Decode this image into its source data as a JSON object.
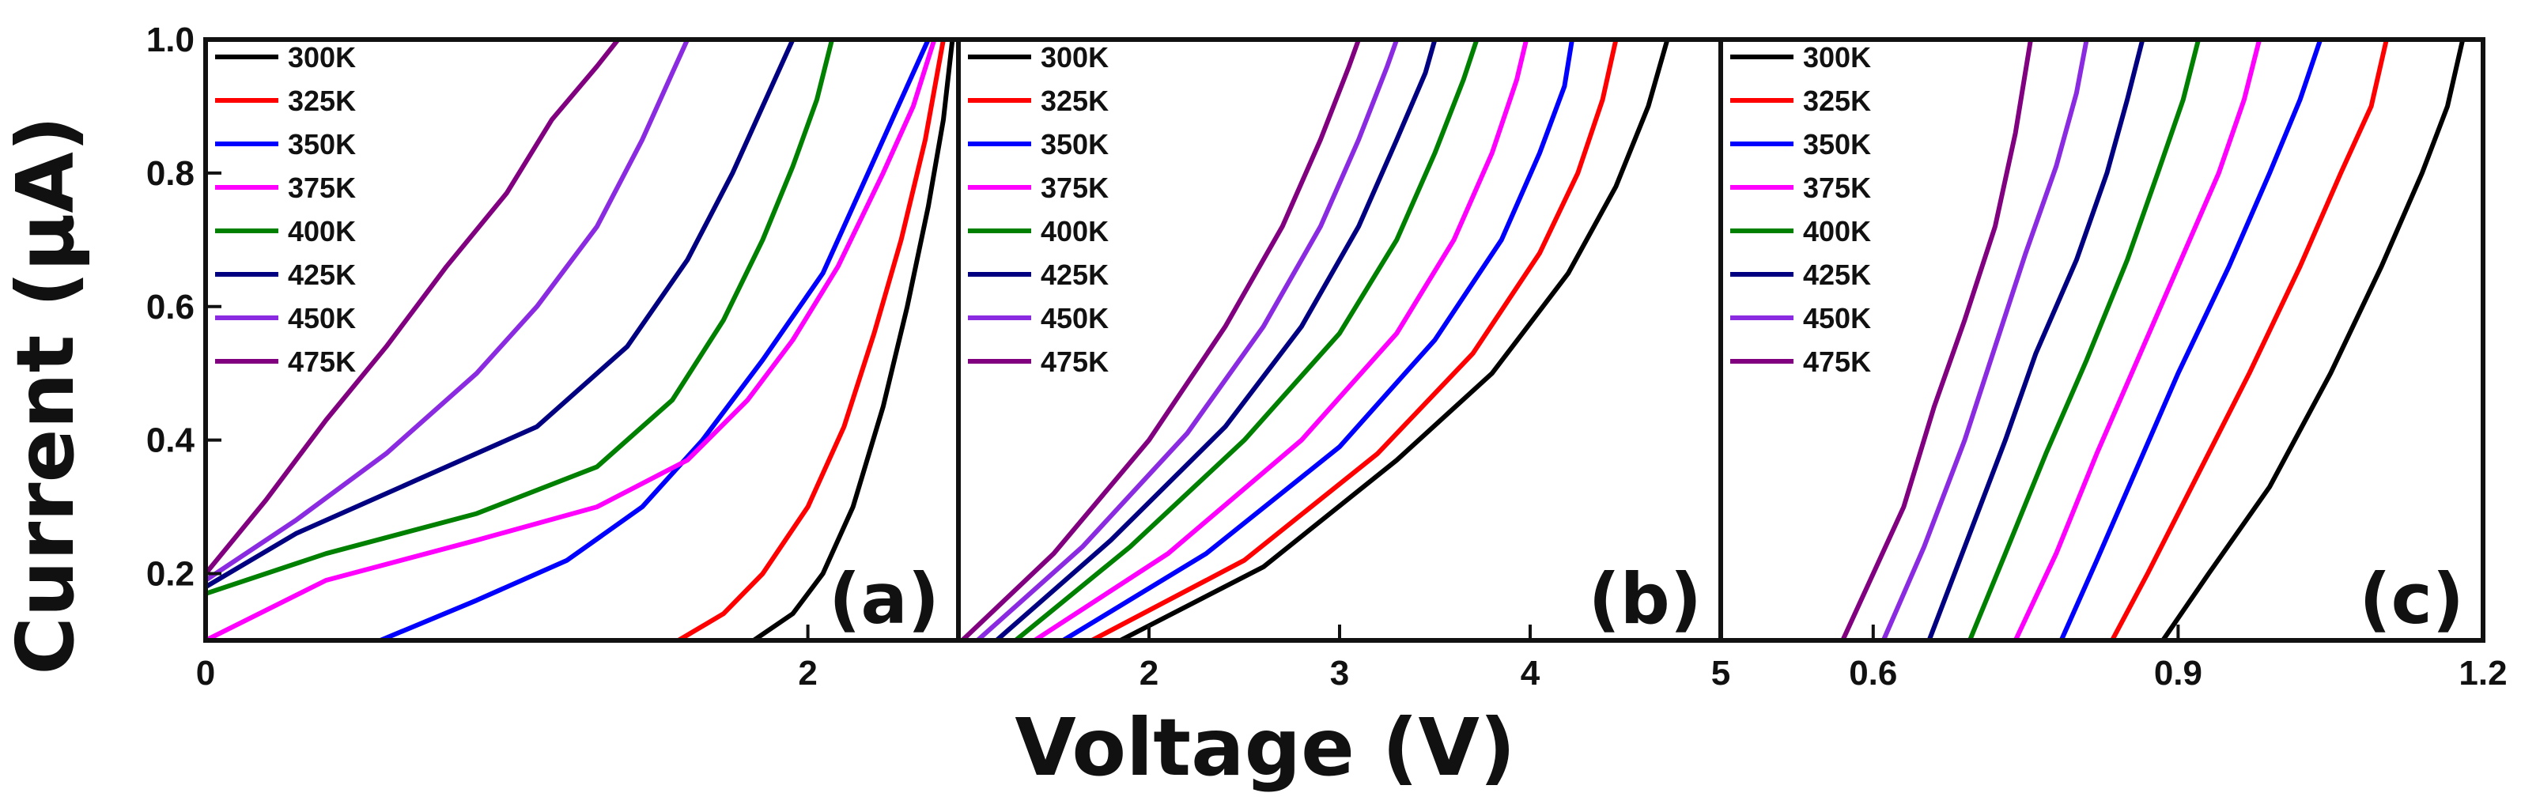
{
  "chart_data": [
    {
      "type": "line",
      "panel_label": "(a)",
      "xlim": [
        0,
        2.5
      ],
      "ylim": [
        0.1,
        1.0
      ],
      "xticks": [
        0,
        2
      ],
      "xtick_labels": [
        "0",
        "2"
      ],
      "yticks": [
        0.2,
        0.4,
        0.6,
        0.8,
        1.0
      ],
      "ytick_labels": [
        "0.2",
        "0.4",
        "0.6",
        "0.8",
        "1.0"
      ],
      "legend_position": "top-left",
      "series": [
        {
          "name": "300K",
          "color": "#000000",
          "points": [
            [
              1.82,
              0.1
            ],
            [
              1.95,
              0.14
            ],
            [
              2.05,
              0.2
            ],
            [
              2.15,
              0.3
            ],
            [
              2.25,
              0.45
            ],
            [
              2.33,
              0.6
            ],
            [
              2.4,
              0.75
            ],
            [
              2.45,
              0.88
            ],
            [
              2.48,
              1.0
            ]
          ]
        },
        {
          "name": "325K",
          "color": "#ff0000",
          "points": [
            [
              1.57,
              0.1
            ],
            [
              1.72,
              0.14
            ],
            [
              1.85,
              0.2
            ],
            [
              2.0,
              0.3
            ],
            [
              2.12,
              0.42
            ],
            [
              2.22,
              0.56
            ],
            [
              2.31,
              0.7
            ],
            [
              2.39,
              0.85
            ],
            [
              2.45,
              1.0
            ]
          ]
        },
        {
          "name": "350K",
          "color": "#0000ff",
          "points": [
            [
              0.58,
              0.1
            ],
            [
              0.9,
              0.16
            ],
            [
              1.2,
              0.22
            ],
            [
              1.45,
              0.3
            ],
            [
              1.65,
              0.4
            ],
            [
              1.85,
              0.52
            ],
            [
              2.05,
              0.65
            ],
            [
              2.2,
              0.8
            ],
            [
              2.3,
              0.9
            ],
            [
              2.4,
              1.0
            ]
          ]
        },
        {
          "name": "375K",
          "color": "#ff00ff",
          "points": [
            [
              0,
              0.1
            ],
            [
              0.4,
              0.19
            ],
            [
              0.9,
              0.25
            ],
            [
              1.3,
              0.3
            ],
            [
              1.6,
              0.37
            ],
            [
              1.8,
              0.46
            ],
            [
              1.95,
              0.55
            ],
            [
              2.1,
              0.66
            ],
            [
              2.25,
              0.8
            ],
            [
              2.35,
              0.9
            ],
            [
              2.42,
              1.0
            ]
          ]
        },
        {
          "name": "400K",
          "color": "#008000",
          "points": [
            [
              0,
              0.17
            ],
            [
              0.4,
              0.23
            ],
            [
              0.9,
              0.29
            ],
            [
              1.3,
              0.36
            ],
            [
              1.55,
              0.46
            ],
            [
              1.72,
              0.58
            ],
            [
              1.85,
              0.7
            ],
            [
              1.95,
              0.81
            ],
            [
              2.03,
              0.91
            ],
            [
              2.08,
              1.0
            ]
          ]
        },
        {
          "name": "425K",
          "color": "#000080",
          "points": [
            [
              0,
              0.18
            ],
            [
              0.3,
              0.26
            ],
            [
              0.7,
              0.34
            ],
            [
              1.1,
              0.42
            ],
            [
              1.4,
              0.54
            ],
            [
              1.6,
              0.67
            ],
            [
              1.75,
              0.8
            ],
            [
              1.85,
              0.9
            ],
            [
              1.95,
              1.0
            ]
          ]
        },
        {
          "name": "450K",
          "color": "#8a2be2",
          "points": [
            [
              0,
              0.19
            ],
            [
              0.3,
              0.28
            ],
            [
              0.6,
              0.38
            ],
            [
              0.9,
              0.5
            ],
            [
              1.1,
              0.6
            ],
            [
              1.3,
              0.72
            ],
            [
              1.45,
              0.85
            ],
            [
              1.55,
              0.95
            ],
            [
              1.6,
              1.0
            ]
          ]
        },
        {
          "name": "475K",
          "color": "#800080",
          "points": [
            [
              0,
              0.2
            ],
            [
              0.2,
              0.31
            ],
            [
              0.4,
              0.43
            ],
            [
              0.6,
              0.54
            ],
            [
              0.8,
              0.66
            ],
            [
              1.0,
              0.77
            ],
            [
              1.15,
              0.88
            ],
            [
              1.3,
              0.96
            ],
            [
              1.37,
              1.0
            ]
          ]
        }
      ]
    },
    {
      "type": "line",
      "panel_label": "(b)",
      "xlim": [
        1.0,
        5.0
      ],
      "ylim": [
        0.1,
        1.0
      ],
      "xticks": [
        2,
        3,
        4,
        5
      ],
      "xtick_labels": [
        "2",
        "3",
        "4",
        "5"
      ],
      "legend_position": "top-left",
      "series": [
        {
          "name": "300K",
          "color": "#000000",
          "points": [
            [
              1.85,
              0.1
            ],
            [
              2.6,
              0.21
            ],
            [
              3.3,
              0.37
            ],
            [
              3.8,
              0.5
            ],
            [
              4.2,
              0.65
            ],
            [
              4.45,
              0.78
            ],
            [
              4.62,
              0.9
            ],
            [
              4.72,
              1.0
            ]
          ]
        },
        {
          "name": "325K",
          "color": "#ff0000",
          "points": [
            [
              1.7,
              0.1
            ],
            [
              2.5,
              0.22
            ],
            [
              3.2,
              0.38
            ],
            [
              3.7,
              0.53
            ],
            [
              4.05,
              0.68
            ],
            [
              4.25,
              0.8
            ],
            [
              4.38,
              0.91
            ],
            [
              4.45,
              1.0
            ]
          ]
        },
        {
          "name": "350K",
          "color": "#0000ff",
          "points": [
            [
              1.55,
              0.1
            ],
            [
              2.3,
              0.23
            ],
            [
              3.0,
              0.39
            ],
            [
              3.5,
              0.55
            ],
            [
              3.85,
              0.7
            ],
            [
              4.05,
              0.83
            ],
            [
              4.18,
              0.93
            ],
            [
              4.22,
              1.0
            ]
          ]
        },
        {
          "name": "375K",
          "color": "#ff00ff",
          "points": [
            [
              1.4,
              0.1
            ],
            [
              2.1,
              0.23
            ],
            [
              2.8,
              0.4
            ],
            [
              3.3,
              0.56
            ],
            [
              3.6,
              0.7
            ],
            [
              3.8,
              0.83
            ],
            [
              3.93,
              0.94
            ],
            [
              3.98,
              1.0
            ]
          ]
        },
        {
          "name": "400K",
          "color": "#008000",
          "points": [
            [
              1.3,
              0.1
            ],
            [
              1.9,
              0.24
            ],
            [
              2.5,
              0.4
            ],
            [
              3.0,
              0.56
            ],
            [
              3.3,
              0.7
            ],
            [
              3.5,
              0.83
            ],
            [
              3.65,
              0.94
            ],
            [
              3.72,
              1.0
            ]
          ]
        },
        {
          "name": "425K",
          "color": "#000080",
          "points": [
            [
              1.2,
              0.1
            ],
            [
              1.8,
              0.25
            ],
            [
              2.4,
              0.42
            ],
            [
              2.8,
              0.57
            ],
            [
              3.1,
              0.72
            ],
            [
              3.3,
              0.85
            ],
            [
              3.45,
              0.95
            ],
            [
              3.5,
              1.0
            ]
          ]
        },
        {
          "name": "450K",
          "color": "#8a2be2",
          "points": [
            [
              1.1,
              0.1
            ],
            [
              1.65,
              0.24
            ],
            [
              2.2,
              0.41
            ],
            [
              2.6,
              0.57
            ],
            [
              2.9,
              0.72
            ],
            [
              3.1,
              0.85
            ],
            [
              3.25,
              0.96
            ],
            [
              3.3,
              1.0
            ]
          ]
        },
        {
          "name": "475K",
          "color": "#800080",
          "points": [
            [
              1.02,
              0.1
            ],
            [
              1.5,
              0.23
            ],
            [
              2.0,
              0.4
            ],
            [
              2.4,
              0.57
            ],
            [
              2.7,
              0.72
            ],
            [
              2.9,
              0.85
            ],
            [
              3.05,
              0.96
            ],
            [
              3.1,
              1.0
            ]
          ]
        }
      ]
    },
    {
      "type": "line",
      "panel_label": "(c)",
      "xlim": [
        0.45,
        1.2
      ],
      "ylim": [
        0.1,
        1.0
      ],
      "xticks": [
        0.6,
        0.9,
        1.2
      ],
      "xtick_labels": [
        "0.6",
        "0.9",
        "1.2"
      ],
      "legend_position": "top-left",
      "series": [
        {
          "name": "300K",
          "color": "#000000",
          "points": [
            [
              0.885,
              0.1
            ],
            [
              0.93,
              0.2
            ],
            [
              0.99,
              0.33
            ],
            [
              1.05,
              0.5
            ],
            [
              1.1,
              0.66
            ],
            [
              1.14,
              0.8
            ],
            [
              1.165,
              0.9
            ],
            [
              1.18,
              1.0
            ]
          ]
        },
        {
          "name": "325K",
          "color": "#ff0000",
          "points": [
            [
              0.835,
              0.1
            ],
            [
              0.87,
              0.2
            ],
            [
              0.92,
              0.35
            ],
            [
              0.97,
              0.5
            ],
            [
              1.02,
              0.66
            ],
            [
              1.06,
              0.8
            ],
            [
              1.09,
              0.9
            ],
            [
              1.105,
              1.0
            ]
          ]
        },
        {
          "name": "350K",
          "color": "#0000ff",
          "points": [
            [
              0.785,
              0.1
            ],
            [
              0.82,
              0.22
            ],
            [
              0.86,
              0.36
            ],
            [
              0.9,
              0.5
            ],
            [
              0.95,
              0.66
            ],
            [
              0.99,
              0.8
            ],
            [
              1.02,
              0.91
            ],
            [
              1.04,
              1.0
            ]
          ]
        },
        {
          "name": "375K",
          "color": "#ff00ff",
          "points": [
            [
              0.74,
              0.1
            ],
            [
              0.78,
              0.23
            ],
            [
              0.82,
              0.38
            ],
            [
              0.86,
              0.52
            ],
            [
              0.9,
              0.66
            ],
            [
              0.94,
              0.8
            ],
            [
              0.965,
              0.91
            ],
            [
              0.98,
              1.0
            ]
          ]
        },
        {
          "name": "400K",
          "color": "#008000",
          "points": [
            [
              0.695,
              0.1
            ],
            [
              0.73,
              0.23
            ],
            [
              0.77,
              0.38
            ],
            [
              0.81,
              0.52
            ],
            [
              0.85,
              0.67
            ],
            [
              0.88,
              0.8
            ],
            [
              0.905,
              0.91
            ],
            [
              0.92,
              1.0
            ]
          ]
        },
        {
          "name": "425K",
          "color": "#000080",
          "points": [
            [
              0.655,
              0.1
            ],
            [
              0.69,
              0.24
            ],
            [
              0.73,
              0.4
            ],
            [
              0.76,
              0.53
            ],
            [
              0.8,
              0.67
            ],
            [
              0.83,
              0.8
            ],
            [
              0.85,
              0.91
            ],
            [
              0.865,
              1.0
            ]
          ]
        },
        {
          "name": "450K",
          "color": "#8a2be2",
          "points": [
            [
              0.61,
              0.1
            ],
            [
              0.65,
              0.24
            ],
            [
              0.69,
              0.4
            ],
            [
              0.72,
              0.54
            ],
            [
              0.75,
              0.68
            ],
            [
              0.78,
              0.81
            ],
            [
              0.8,
              0.92
            ],
            [
              0.81,
              1.0
            ]
          ]
        },
        {
          "name": "475K",
          "color": "#800080",
          "points": [
            [
              0.57,
              0.1
            ],
            [
              0.6,
              0.2
            ],
            [
              0.63,
              0.3
            ],
            [
              0.66,
              0.45
            ],
            [
              0.69,
              0.58
            ],
            [
              0.72,
              0.72
            ],
            [
              0.74,
              0.86
            ],
            [
              0.755,
              1.0
            ]
          ]
        }
      ]
    }
  ],
  "xlabel": "Voltage (V)",
  "ylabel": "Current (μA)"
}
